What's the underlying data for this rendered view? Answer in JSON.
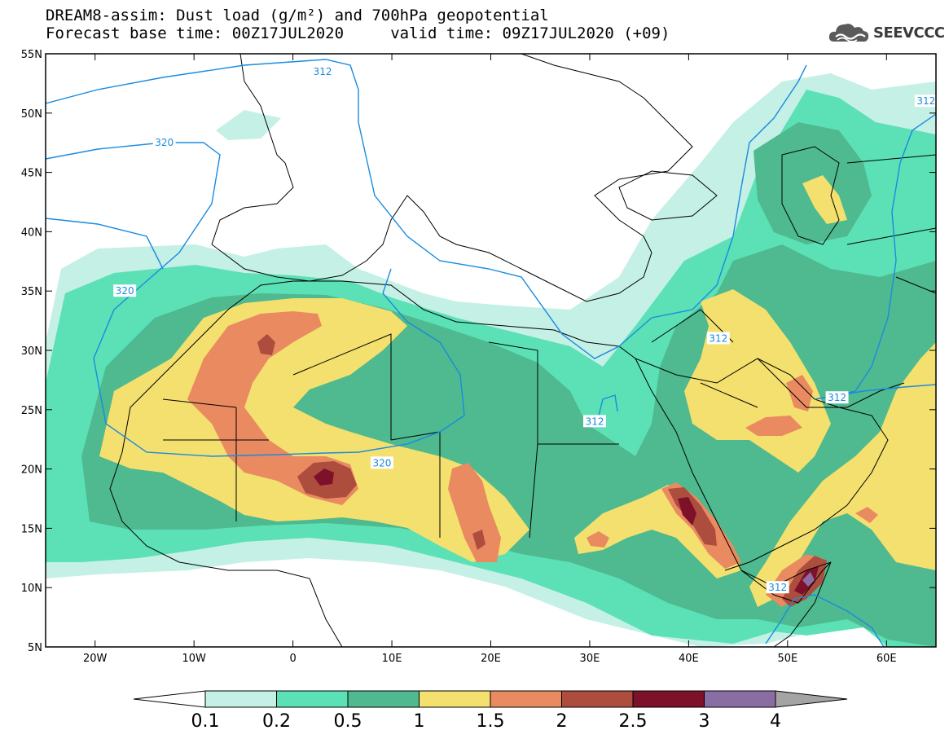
{
  "title": {
    "line1": "DREAM8-assim: Dust load (g/m²) and 700hPa geopotential",
    "line2": "Forecast base time: 00Z17JUL2020     valid time: 09Z17JUL2020 (+09)"
  },
  "logo": {
    "text": "SEEVCCC",
    "icon": "cloud-logo-icon"
  },
  "axes": {
    "lat_labels": [
      "55N",
      "50N",
      "45N",
      "40N",
      "35N",
      "30N",
      "25N",
      "20N",
      "15N",
      "10N",
      "5N"
    ],
    "lat_values": [
      55,
      50,
      45,
      40,
      35,
      30,
      25,
      20,
      15,
      10,
      5
    ],
    "lon_labels": [
      "20W",
      "10W",
      "0",
      "10E",
      "20E",
      "30E",
      "40E",
      "50E",
      "60E"
    ],
    "lon_values": [
      -20,
      -10,
      0,
      10,
      20,
      30,
      40,
      50,
      60
    ],
    "lon_range": [
      -25,
      65
    ],
    "lat_range": [
      5,
      55
    ]
  },
  "colorbar": {
    "labels": [
      "0.1",
      "0.2",
      "0.5",
      "1",
      "1.5",
      "2",
      "2.5",
      "3",
      "4"
    ],
    "colors": [
      "#ffffff",
      "#c4f0e6",
      "#5ce0b6",
      "#4fb98f",
      "#f4e06e",
      "#e98a61",
      "#ad4d3e",
      "#7d1129",
      "#8a6ea3",
      "#a4a4a4"
    ]
  },
  "contours": {
    "color": "#1a8be0",
    "labels": [
      {
        "text": "312",
        "lon": 3,
        "lat": 53.5
      },
      {
        "text": "320",
        "lon": -13,
        "lat": 47.5
      },
      {
        "text": "320",
        "lon": -17,
        "lat": 35
      },
      {
        "text": "320",
        "lon": 9,
        "lat": 20.5
      },
      {
        "text": "312",
        "lon": 30.5,
        "lat": 24
      },
      {
        "text": "312",
        "lon": 43,
        "lat": 31
      },
      {
        "text": "312",
        "lon": 55,
        "lat": 26
      },
      {
        "text": "312",
        "lon": 64,
        "lat": 51
      },
      {
        "text": "312",
        "lon": 49,
        "lat": 10
      }
    ]
  }
}
